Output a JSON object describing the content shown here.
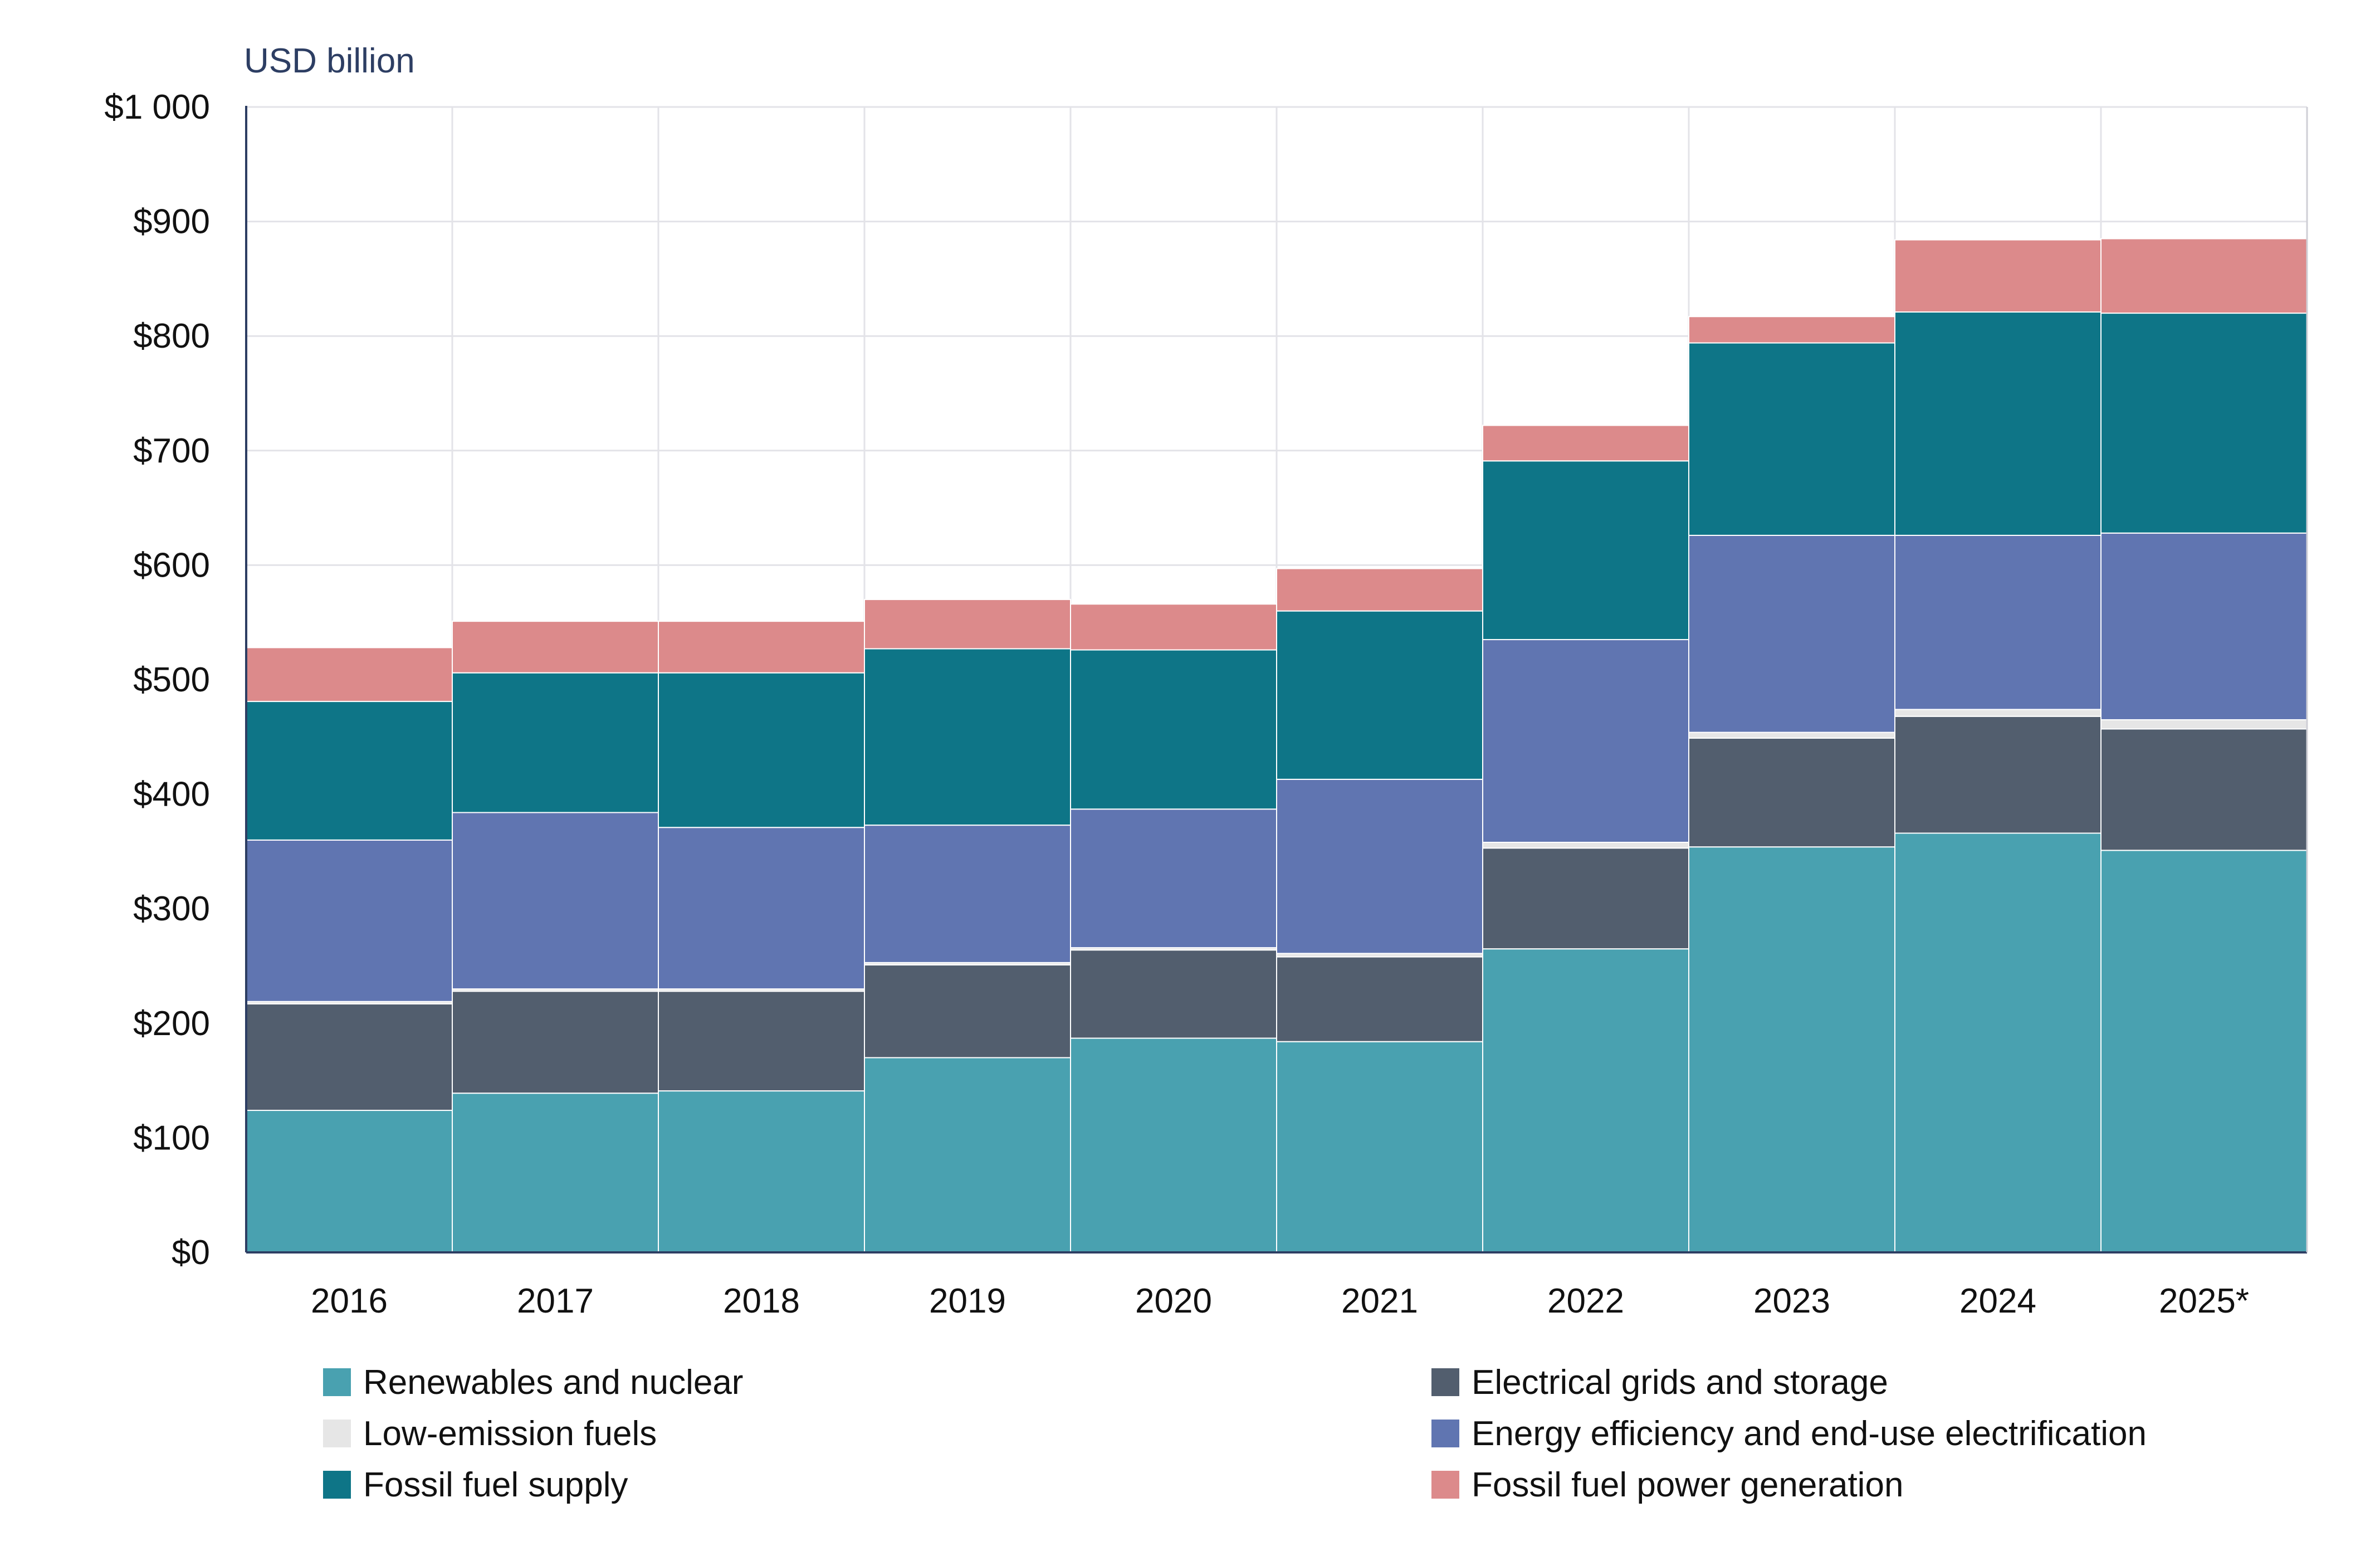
{
  "chart_data": {
    "type": "bar",
    "stacked": true,
    "unit_label": "USD billion",
    "categories": [
      "2016",
      "2017",
      "2018",
      "2019",
      "2020",
      "2021",
      "2022",
      "2023",
      "2024",
      "2025*"
    ],
    "ylim": [
      0,
      1000
    ],
    "yticks": [
      0,
      100,
      200,
      300,
      400,
      500,
      600,
      700,
      800,
      900,
      1000
    ],
    "ytick_labels": [
      "$0",
      "$100",
      "$200",
      "$300",
      "$400",
      "$500",
      "$600",
      "$700",
      "$800",
      "$900",
      "$1 000"
    ],
    "grid": true,
    "legend_position": "bottom",
    "series": [
      {
        "name": "Renewables and nuclear",
        "color": "#49a1b0",
        "values": [
          124,
          139,
          141,
          170,
          187,
          184,
          265,
          354,
          366,
          351
        ]
      },
      {
        "name": "Electrical grids and storage",
        "color": "#525e6e",
        "values": [
          93,
          89,
          87,
          81,
          77,
          74,
          88,
          95,
          102,
          106
        ]
      },
      {
        "name": "Low-emission fuels",
        "color": "#e6e6e6",
        "values": [
          2,
          2,
          2,
          2,
          2,
          3,
          5,
          5,
          6,
          8
        ]
      },
      {
        "name": "Energy efficiency and end-use electrification",
        "color": "#6075b1",
        "values": [
          141,
          154,
          141,
          120,
          121,
          152,
          177,
          172,
          152,
          163
        ]
      },
      {
        "name": "Fossil fuel supply",
        "color": "#0e7587",
        "values": [
          121,
          122,
          135,
          154,
          139,
          147,
          156,
          168,
          195,
          192
        ]
      },
      {
        "name": "Fossil fuel power generation",
        "color": "#dc8a8b",
        "values": [
          47,
          45,
          45,
          43,
          40,
          37,
          31,
          23,
          63,
          65
        ]
      }
    ]
  }
}
